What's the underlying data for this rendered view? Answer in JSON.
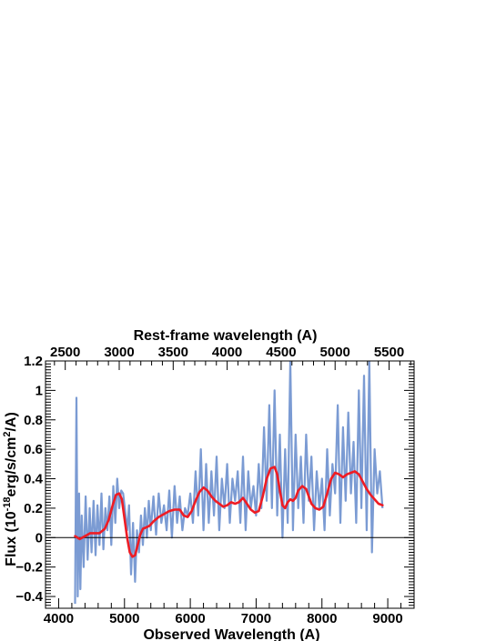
{
  "chart_data": {
    "type": "line",
    "xlabel": "Observed Wavelength (A)",
    "top_xlabel": "Rest-frame wavelength (A)",
    "ylabel": "Flux (10",
    "ylabel_exp": "-18",
    "ylabel_rest": "erg/s/cm",
    "ylabel_sq": "2",
    "ylabel_end": "/A)",
    "xlim": [
      3800,
      9400
    ],
    "ylim": [
      -0.48,
      1.2
    ],
    "x_ticks": [
      4000,
      5000,
      6000,
      7000,
      8000,
      9000
    ],
    "y_ticks": [
      -0.4,
      -0.2,
      0,
      0.2,
      0.4,
      0.6,
      0.8,
      1,
      1.2
    ],
    "y_tick_labels": [
      "−0.4",
      "−0.2",
      "0",
      "0.2",
      "0.4",
      "0.6",
      "0.8",
      "1",
      "1.2"
    ],
    "top_ticks": [
      2500,
      3000,
      3500,
      4000,
      4500,
      5000,
      5500
    ],
    "top_axis_scale": 1.64,
    "zero_line": 0,
    "series": [
      {
        "role": "observed spectrum",
        "color": "#7b9bd3",
        "x": [
          4250,
          4270,
          4290,
          4310,
          4330,
          4350,
          4380,
          4410,
          4440,
          4470,
          4500,
          4530,
          4560,
          4590,
          4620,
          4650,
          4680,
          4710,
          4740,
          4770,
          4800,
          4830,
          4860,
          4890,
          4920,
          4950,
          4980,
          5010,
          5040,
          5070,
          5100,
          5130,
          5160,
          5190,
          5220,
          5250,
          5280,
          5310,
          5340,
          5370,
          5400,
          5440,
          5480,
          5520,
          5560,
          5600,
          5640,
          5680,
          5720,
          5760,
          5800,
          5840,
          5880,
          5920,
          5960,
          6000,
          6040,
          6080,
          6120,
          6160,
          6200,
          6240,
          6280,
          6320,
          6360,
          6400,
          6440,
          6480,
          6520,
          6560,
          6600,
          6640,
          6680,
          6720,
          6760,
          6800,
          6840,
          6880,
          6920,
          6960,
          7000,
          7040,
          7080,
          7120,
          7160,
          7200,
          7240,
          7280,
          7320,
          7360,
          7400,
          7440,
          7480,
          7520,
          7560,
          7600,
          7640,
          7680,
          7720,
          7760,
          7800,
          7840,
          7880,
          7920,
          7960,
          8000,
          8040,
          8080,
          8120,
          8160,
          8200,
          8240,
          8280,
          8320,
          8360,
          8400,
          8440,
          8480,
          8520,
          8560,
          8600,
          8640,
          8680,
          8720,
          8760,
          8800,
          8840,
          8880,
          8920
        ],
        "y": [
          -0.45,
          0.95,
          -0.4,
          0.3,
          -0.35,
          0.15,
          -0.2,
          0.28,
          -0.15,
          0.2,
          -0.1,
          0.25,
          -0.12,
          0.22,
          -0.05,
          0.3,
          -0.08,
          0.2,
          0.05,
          0.28,
          -0.05,
          0.35,
          0.1,
          0.4,
          0.2,
          0.32,
          0.3,
          0.18,
          0.05,
          0.22,
          -0.25,
          0.1,
          -0.3,
          0.05,
          -0.1,
          0.15,
          -0.05,
          0.2,
          0.0,
          0.25,
          0.05,
          0.28,
          0.02,
          0.3,
          0.1,
          0.22,
          0.05,
          0.32,
          0.0,
          0.35,
          0.1,
          0.28,
          0.05,
          0.2,
          0.15,
          0.3,
          0.1,
          0.45,
          0.15,
          0.6,
          0.05,
          0.5,
          0.1,
          0.45,
          0.15,
          0.55,
          0.05,
          0.4,
          0.2,
          0.5,
          0.1,
          0.4,
          0.25,
          0.45,
          0.1,
          0.55,
          0.05,
          0.45,
          0.2,
          0.35,
          0.15,
          0.5,
          0.2,
          0.75,
          0.25,
          0.9,
          0.2,
          1.0,
          0.15,
          0.7,
          0.0,
          0.6,
          0.1,
          1.2,
          0.05,
          0.7,
          0.2,
          0.55,
          0.1,
          0.7,
          0.25,
          0.55,
          0.05,
          0.45,
          0.2,
          0.4,
          0.05,
          0.6,
          0.15,
          0.5,
          0.3,
          0.9,
          0.1,
          0.75,
          0.25,
          0.85,
          0.3,
          0.65,
          0.1,
          1.0,
          0.2,
          1.1,
          0.05,
          1.2,
          -0.1,
          0.6,
          0.3,
          0.45,
          0.2
        ]
      },
      {
        "role": "smoothed spectrum",
        "color": "#ee1c24",
        "x": [
          4250,
          4320,
          4400,
          4480,
          4550,
          4620,
          4700,
          4760,
          4820,
          4870,
          4920,
          4960,
          5000,
          5040,
          5080,
          5120,
          5160,
          5200,
          5240,
          5280,
          5330,
          5380,
          5440,
          5520,
          5600,
          5680,
          5760,
          5840,
          5900,
          5960,
          6020,
          6080,
          6140,
          6200,
          6260,
          6320,
          6380,
          6440,
          6500,
          6560,
          6620,
          6680,
          6740,
          6800,
          6860,
          6920,
          6980,
          7040,
          7100,
          7160,
          7220,
          7280,
          7320,
          7360,
          7400,
          7440,
          7480,
          7520,
          7560,
          7600,
          7640,
          7700,
          7760,
          7800,
          7840,
          7900,
          7960,
          8020,
          8080,
          8140,
          8200,
          8260,
          8320,
          8380,
          8440,
          8500,
          8560,
          8620,
          8680,
          8740,
          8800,
          8860,
          8920
        ],
        "y": [
          0.01,
          -0.01,
          0.01,
          0.03,
          0.03,
          0.03,
          0.06,
          0.12,
          0.22,
          0.29,
          0.3,
          0.26,
          0.13,
          0.0,
          -0.1,
          -0.13,
          -0.12,
          -0.05,
          0.02,
          0.06,
          0.07,
          0.08,
          0.11,
          0.14,
          0.16,
          0.18,
          0.19,
          0.19,
          0.15,
          0.14,
          0.18,
          0.25,
          0.31,
          0.34,
          0.32,
          0.28,
          0.25,
          0.23,
          0.21,
          0.22,
          0.24,
          0.23,
          0.24,
          0.27,
          0.23,
          0.19,
          0.17,
          0.18,
          0.28,
          0.4,
          0.47,
          0.48,
          0.43,
          0.32,
          0.22,
          0.2,
          0.24,
          0.26,
          0.25,
          0.27,
          0.32,
          0.35,
          0.33,
          0.28,
          0.23,
          0.2,
          0.19,
          0.21,
          0.3,
          0.4,
          0.44,
          0.43,
          0.41,
          0.43,
          0.44,
          0.45,
          0.43,
          0.38,
          0.33,
          0.29,
          0.26,
          0.23,
          0.22
        ]
      }
    ]
  }
}
